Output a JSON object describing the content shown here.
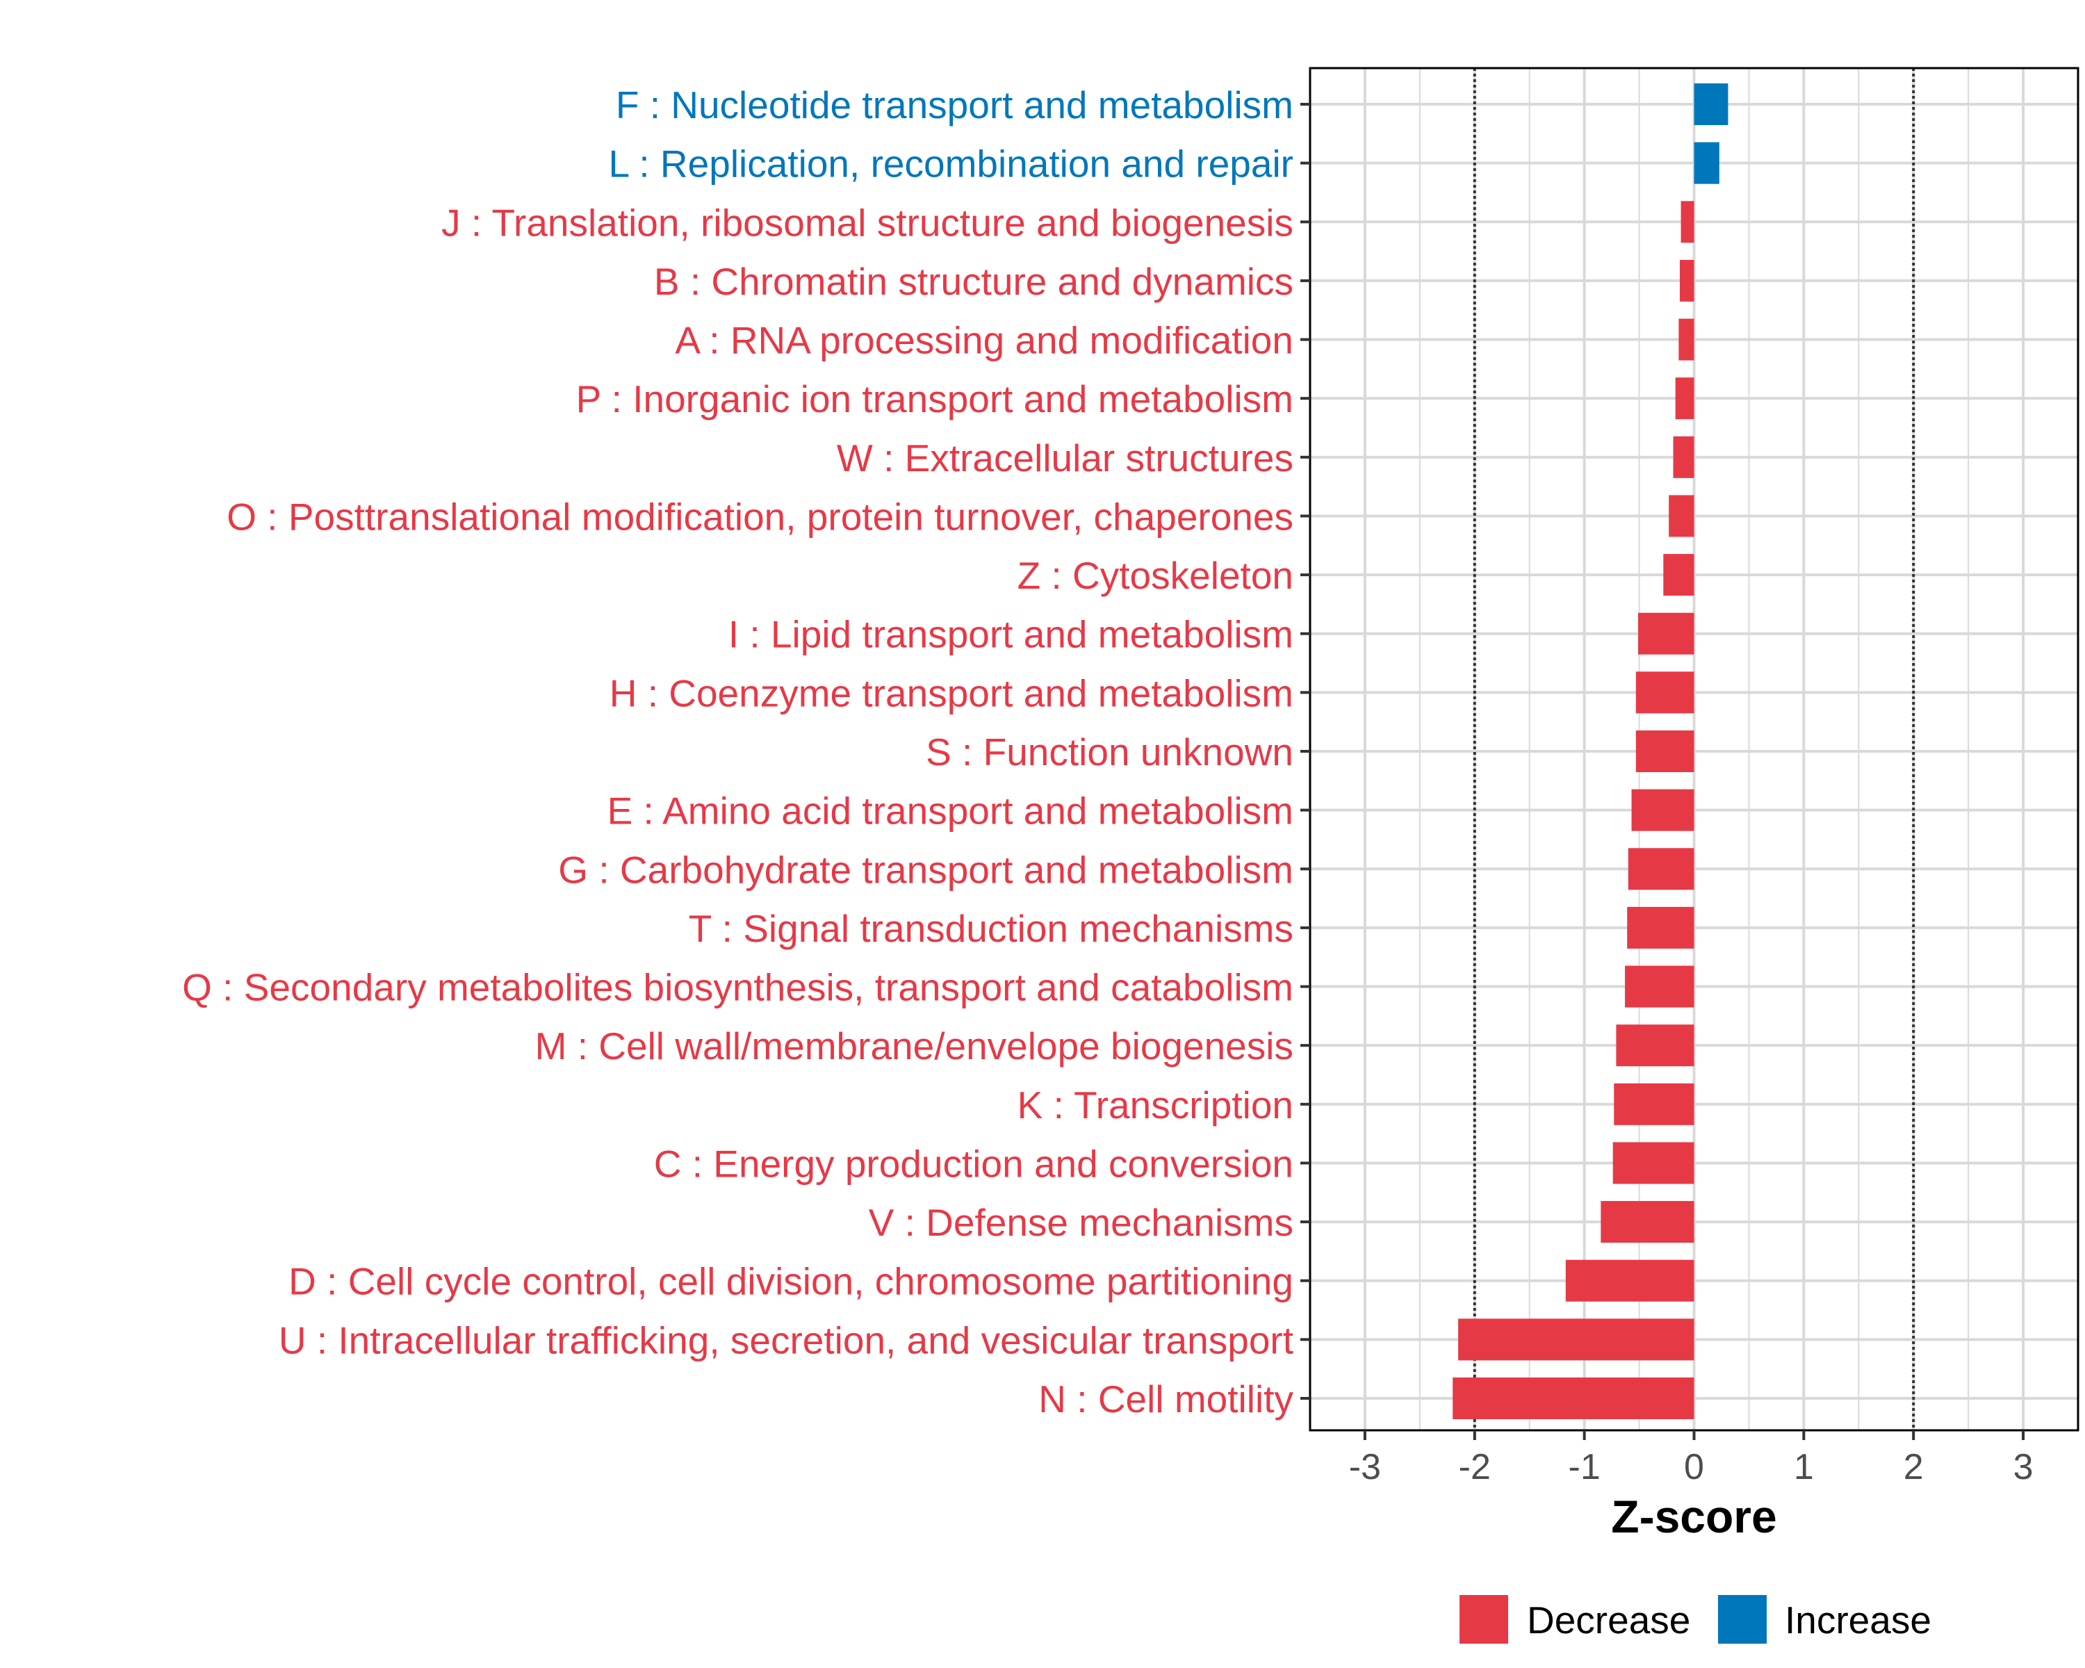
{
  "chart_data": {
    "type": "bar",
    "orientation": "horizontal",
    "title": "",
    "xlabel": "Z-score",
    "ylabel": "",
    "xlim": [
      -3.5,
      3.5
    ],
    "xticks": [
      -3,
      -2,
      -1,
      0,
      1,
      2,
      3
    ],
    "xtick_labels": [
      "-3",
      "-2",
      "-1",
      "0",
      "1",
      "2",
      "3"
    ],
    "reference_lines": [
      -2,
      2
    ],
    "grid": true,
    "categories": [
      "F : Nucleotide transport and metabolism",
      "L : Replication, recombination and repair",
      "J : Translation, ribosomal structure and biogenesis",
      "B : Chromatin structure and dynamics",
      "A : RNA processing and modification",
      "P : Inorganic ion transport and metabolism",
      "W : Extracellular structures",
      "O : Posttranslational modification, protein turnover, chaperones",
      "Z : Cytoskeleton",
      "I : Lipid transport and metabolism",
      "H : Coenzyme transport and metabolism",
      "S : Function unknown",
      "E : Amino acid transport and metabolism",
      "G : Carbohydrate transport and metabolism",
      "T : Signal transduction mechanisms",
      "Q : Secondary metabolites biosynthesis, transport and catabolism",
      "M : Cell wall/membrane/envelope biogenesis",
      "K : Transcription",
      "C : Energy production and conversion",
      "V : Defense mechanisms",
      "D : Cell cycle control, cell division, chromosome partitioning",
      "U : Intracellular trafficking, secretion, and vesicular transport",
      "N : Cell motility"
    ],
    "values": [
      0.31,
      0.23,
      -0.12,
      -0.13,
      -0.14,
      -0.17,
      -0.19,
      -0.23,
      -0.28,
      -0.51,
      -0.53,
      -0.53,
      -0.57,
      -0.6,
      -0.61,
      -0.63,
      -0.71,
      -0.73,
      -0.74,
      -0.85,
      -1.17,
      -2.15,
      -2.2
    ],
    "groups": [
      "Increase",
      "Increase",
      "Decrease",
      "Decrease",
      "Decrease",
      "Decrease",
      "Decrease",
      "Decrease",
      "Decrease",
      "Decrease",
      "Decrease",
      "Decrease",
      "Decrease",
      "Decrease",
      "Decrease",
      "Decrease",
      "Decrease",
      "Decrease",
      "Decrease",
      "Decrease",
      "Decrease",
      "Decrease",
      "Decrease"
    ],
    "legend": {
      "position": "bottom",
      "entries": [
        {
          "label": "Decrease",
          "color": "#E63946"
        },
        {
          "label": "Increase",
          "color": "#0077BB"
        }
      ]
    }
  },
  "colors": {
    "decrease": "#E63946",
    "increase": "#0077BB",
    "grid": "#D9D9D9",
    "panel_border": "#000000",
    "reference_line": "#333333"
  }
}
